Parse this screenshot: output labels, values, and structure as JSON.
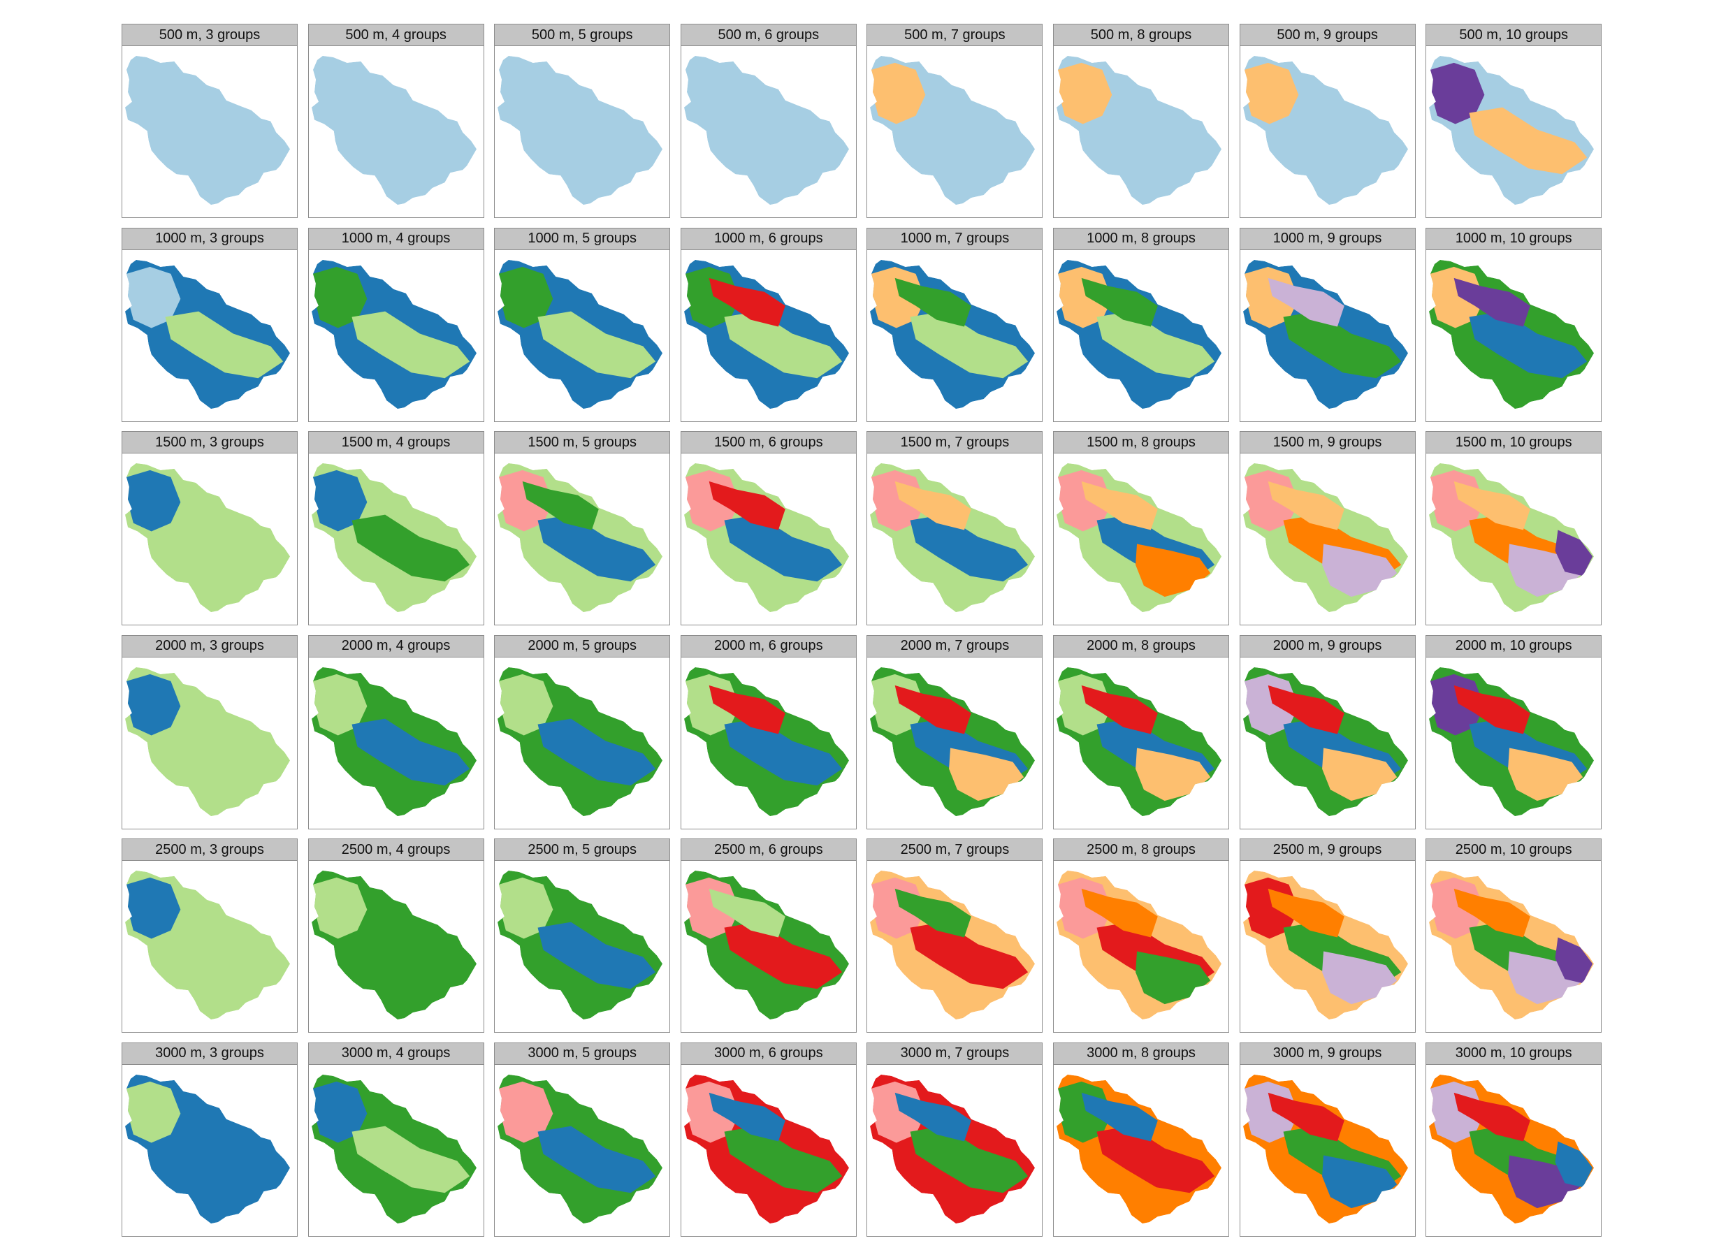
{
  "figure": {
    "palette": {
      "light_blue": "#a6cee3",
      "dark_blue": "#1f78b4",
      "light_green": "#b2df8a",
      "dark_green": "#33a02c",
      "pink": "#fb9a99",
      "red": "#e31a1c",
      "light_orange": "#fdbf6f",
      "orange": "#ff7f00",
      "lavender": "#cab2d6",
      "purple": "#6a3d9a"
    },
    "rows": [
      {
        "distance": "500 m",
        "panels": [
          {
            "label": "500 m, 3 groups",
            "groups": 3,
            "base": "light_blue",
            "blobs": []
          },
          {
            "label": "500 m, 4 groups",
            "groups": 4,
            "base": "light_blue",
            "blobs": []
          },
          {
            "label": "500 m, 5 groups",
            "groups": 5,
            "base": "light_blue",
            "blobs": []
          },
          {
            "label": "500 m, 6 groups",
            "groups": 6,
            "base": "light_blue",
            "blobs": []
          },
          {
            "label": "500 m, 7 groups",
            "groups": 7,
            "base": "light_blue",
            "blobs": [
              "light_orange"
            ]
          },
          {
            "label": "500 m, 8 groups",
            "groups": 8,
            "base": "light_blue",
            "blobs": [
              "light_orange"
            ]
          },
          {
            "label": "500 m, 9 groups",
            "groups": 9,
            "base": "light_blue",
            "blobs": [
              "light_orange"
            ]
          },
          {
            "label": "500 m, 10 groups",
            "groups": 10,
            "base": "light_blue",
            "blobs": [
              "purple",
              "light_orange"
            ]
          }
        ]
      },
      {
        "distance": "1000 m",
        "panels": [
          {
            "label": "1000 m, 3 groups",
            "groups": 3,
            "base": "dark_blue",
            "blobs": [
              "light_blue",
              "light_green"
            ]
          },
          {
            "label": "1000 m, 4 groups",
            "groups": 4,
            "base": "dark_blue",
            "blobs": [
              "dark_green",
              "light_green"
            ]
          },
          {
            "label": "1000 m, 5 groups",
            "groups": 5,
            "base": "dark_blue",
            "blobs": [
              "dark_green",
              "light_green"
            ]
          },
          {
            "label": "1000 m, 6 groups",
            "groups": 6,
            "base": "dark_blue",
            "blobs": [
              "dark_green",
              "light_green",
              "red"
            ]
          },
          {
            "label": "1000 m, 7 groups",
            "groups": 7,
            "base": "dark_blue",
            "blobs": [
              "light_orange",
              "light_green",
              "dark_green"
            ]
          },
          {
            "label": "1000 m, 8 groups",
            "groups": 8,
            "base": "dark_blue",
            "blobs": [
              "light_orange",
              "light_green",
              "dark_green"
            ]
          },
          {
            "label": "1000 m, 9 groups",
            "groups": 9,
            "base": "dark_blue",
            "blobs": [
              "light_orange",
              "dark_green",
              "lavender"
            ]
          },
          {
            "label": "1000 m, 10 groups",
            "groups": 10,
            "base": "dark_green",
            "blobs": [
              "light_orange",
              "dark_blue",
              "purple"
            ]
          }
        ]
      },
      {
        "distance": "1500 m",
        "panels": [
          {
            "label": "1500 m, 3 groups",
            "groups": 3,
            "base": "light_green",
            "blobs": [
              "dark_blue"
            ]
          },
          {
            "label": "1500 m, 4 groups",
            "groups": 4,
            "base": "light_green",
            "blobs": [
              "dark_blue",
              "dark_green"
            ]
          },
          {
            "label": "1500 m, 5 groups",
            "groups": 5,
            "base": "light_green",
            "blobs": [
              "pink",
              "dark_blue",
              "dark_green"
            ]
          },
          {
            "label": "1500 m, 6 groups",
            "groups": 6,
            "base": "light_green",
            "blobs": [
              "pink",
              "dark_blue",
              "red"
            ]
          },
          {
            "label": "1500 m, 7 groups",
            "groups": 7,
            "base": "light_green",
            "blobs": [
              "pink",
              "dark_blue",
              "light_orange"
            ]
          },
          {
            "label": "1500 m, 8 groups",
            "groups": 8,
            "base": "light_green",
            "blobs": [
              "pink",
              "dark_blue",
              "light_orange",
              "orange"
            ]
          },
          {
            "label": "1500 m, 9 groups",
            "groups": 9,
            "base": "light_green",
            "blobs": [
              "pink",
              "orange",
              "light_orange",
              "lavender"
            ]
          },
          {
            "label": "1500 m, 10 groups",
            "groups": 10,
            "base": "light_green",
            "blobs": [
              "pink",
              "orange",
              "light_orange",
              "lavender",
              "purple"
            ]
          }
        ]
      },
      {
        "distance": "2000 m",
        "panels": [
          {
            "label": "2000 m, 3 groups",
            "groups": 3,
            "base": "light_green",
            "blobs": [
              "dark_blue"
            ]
          },
          {
            "label": "2000 m, 4 groups",
            "groups": 4,
            "base": "dark_green",
            "blobs": [
              "light_green",
              "dark_blue"
            ]
          },
          {
            "label": "2000 m, 5 groups",
            "groups": 5,
            "base": "dark_green",
            "blobs": [
              "light_green",
              "dark_blue"
            ]
          },
          {
            "label": "2000 m, 6 groups",
            "groups": 6,
            "base": "dark_green",
            "blobs": [
              "light_green",
              "dark_blue",
              "red"
            ]
          },
          {
            "label": "2000 m, 7 groups",
            "groups": 7,
            "base": "dark_green",
            "blobs": [
              "light_green",
              "dark_blue",
              "red",
              "light_orange"
            ]
          },
          {
            "label": "2000 m, 8 groups",
            "groups": 8,
            "base": "dark_green",
            "blobs": [
              "light_green",
              "dark_blue",
              "red",
              "light_orange"
            ]
          },
          {
            "label": "2000 m, 9 groups",
            "groups": 9,
            "base": "dark_green",
            "blobs": [
              "lavender",
              "dark_blue",
              "red",
              "light_orange"
            ]
          },
          {
            "label": "2000 m, 10 groups",
            "groups": 10,
            "base": "dark_green",
            "blobs": [
              "purple",
              "dark_blue",
              "red",
              "light_orange"
            ]
          }
        ]
      },
      {
        "distance": "2500 m",
        "panels": [
          {
            "label": "2500 m, 3 groups",
            "groups": 3,
            "base": "light_green",
            "blobs": [
              "dark_blue"
            ]
          },
          {
            "label": "2500 m, 4 groups",
            "groups": 4,
            "base": "dark_green",
            "blobs": [
              "light_green"
            ]
          },
          {
            "label": "2500 m, 5 groups",
            "groups": 5,
            "base": "dark_green",
            "blobs": [
              "light_green",
              "dark_blue"
            ]
          },
          {
            "label": "2500 m, 6 groups",
            "groups": 6,
            "base": "dark_green",
            "blobs": [
              "pink",
              "red",
              "light_green"
            ]
          },
          {
            "label": "2500 m, 7 groups",
            "groups": 7,
            "base": "light_orange",
            "blobs": [
              "pink",
              "red",
              "dark_green"
            ]
          },
          {
            "label": "2500 m, 8 groups",
            "groups": 8,
            "base": "light_orange",
            "blobs": [
              "pink",
              "red",
              "orange",
              "dark_green"
            ]
          },
          {
            "label": "2500 m, 9 groups",
            "groups": 9,
            "base": "light_orange",
            "blobs": [
              "red",
              "dark_green",
              "orange",
              "lavender"
            ]
          },
          {
            "label": "2500 m, 10 groups",
            "groups": 10,
            "base": "light_orange",
            "blobs": [
              "pink",
              "dark_green",
              "orange",
              "lavender",
              "purple"
            ]
          }
        ]
      },
      {
        "distance": "3000 m",
        "panels": [
          {
            "label": "3000 m, 3 groups",
            "groups": 3,
            "base": "dark_blue",
            "blobs": [
              "light_green"
            ]
          },
          {
            "label": "3000 m, 4 groups",
            "groups": 4,
            "base": "dark_green",
            "blobs": [
              "dark_blue",
              "light_green"
            ]
          },
          {
            "label": "3000 m, 5 groups",
            "groups": 5,
            "base": "dark_green",
            "blobs": [
              "pink",
              "dark_blue"
            ]
          },
          {
            "label": "3000 m, 6 groups",
            "groups": 6,
            "base": "red",
            "blobs": [
              "pink",
              "dark_green",
              "dark_blue"
            ]
          },
          {
            "label": "3000 m, 7 groups",
            "groups": 7,
            "base": "red",
            "blobs": [
              "pink",
              "dark_green",
              "dark_blue"
            ]
          },
          {
            "label": "3000 m, 8 groups",
            "groups": 8,
            "base": "orange",
            "blobs": [
              "dark_green",
              "red",
              "dark_blue"
            ]
          },
          {
            "label": "3000 m, 9 groups",
            "groups": 9,
            "base": "orange",
            "blobs": [
              "lavender",
              "dark_green",
              "red",
              "dark_blue"
            ]
          },
          {
            "label": "3000 m, 10 groups",
            "groups": 10,
            "base": "orange",
            "blobs": [
              "lavender",
              "dark_green",
              "red",
              "purple",
              "dark_blue"
            ]
          }
        ]
      }
    ]
  }
}
